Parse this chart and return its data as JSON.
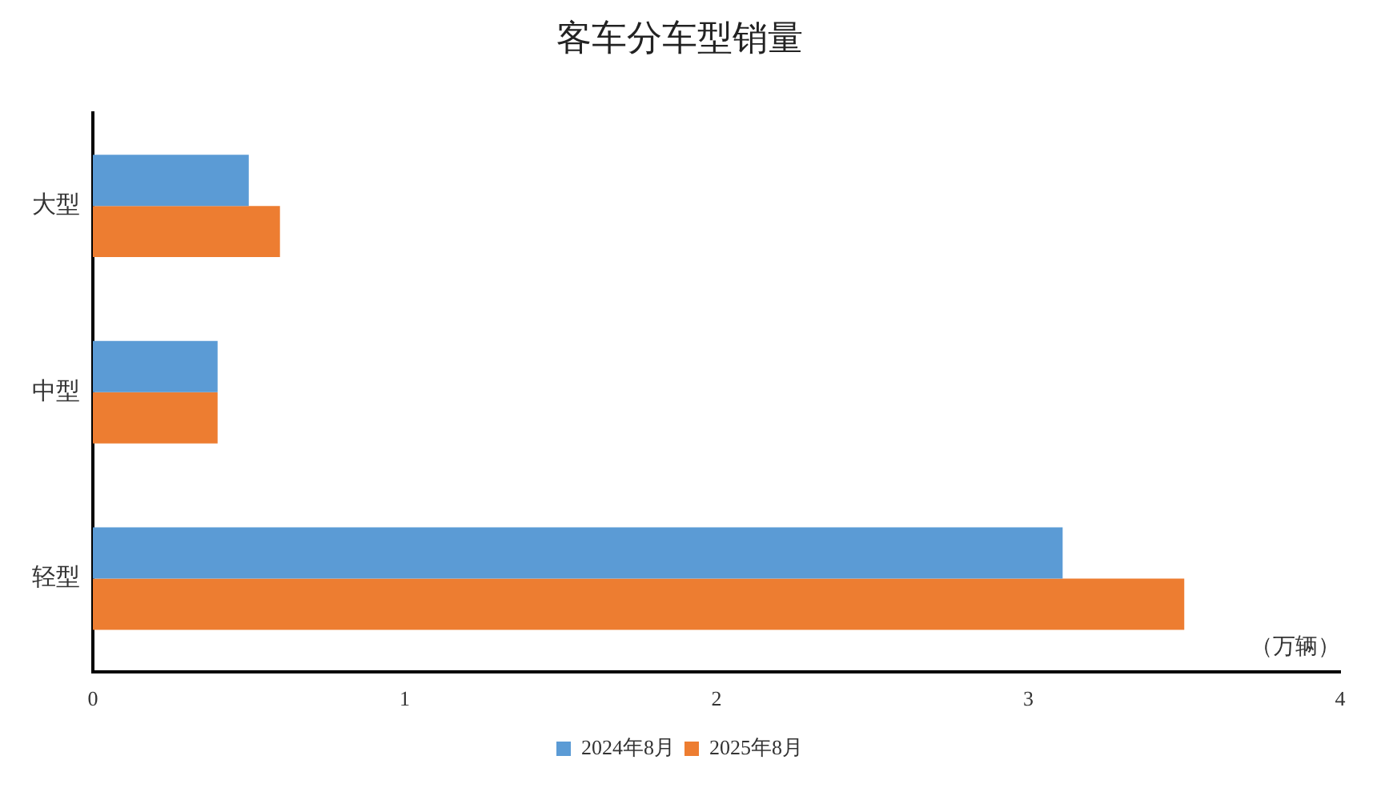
{
  "chart_data": {
    "type": "bar",
    "orientation": "horizontal",
    "title": "客车分车型销量",
    "xlabel": "（万辆）",
    "categories": [
      "大型",
      "中型",
      "轻型"
    ],
    "series": [
      {
        "name": "2024年8月",
        "color": "#5b9bd5",
        "values": [
          0.5,
          0.4,
          3.11
        ]
      },
      {
        "name": "2025年8月",
        "color": "#ed7d31",
        "values": [
          0.6,
          0.4,
          3.5
        ]
      }
    ],
    "xlim": [
      0,
      4
    ],
    "xticks": [
      0,
      1,
      2,
      3,
      4
    ],
    "grid": false,
    "legend": "bottom"
  }
}
